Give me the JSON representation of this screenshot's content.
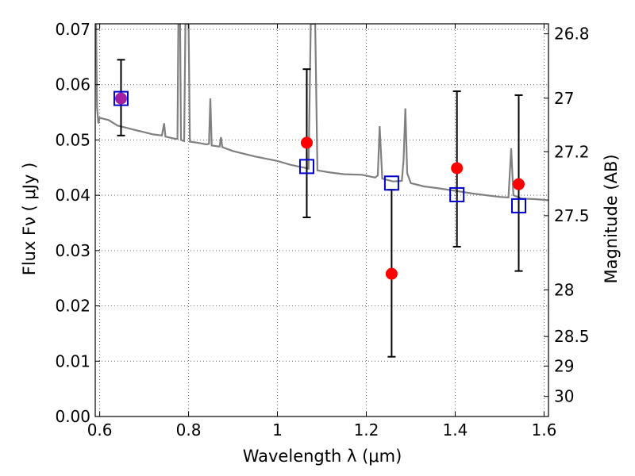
{
  "chart_data": {
    "type": "scatter",
    "xlabel": "Wavelength  λ (μm)",
    "ylabel": "Flux  Fν  ( μJy )",
    "ylabel_right": "Magnitude (AB)",
    "xlim": [
      0.59,
      1.61
    ],
    "ylim": [
      0.0,
      0.071
    ],
    "grid": true,
    "x_ticks": [
      {
        "value": 0.6,
        "label": "0.6"
      },
      {
        "value": 0.8,
        "label": "0.8"
      },
      {
        "value": 1.0,
        "label": "1"
      },
      {
        "value": 1.2,
        "label": "1.2"
      },
      {
        "value": 1.4,
        "label": "1.4"
      },
      {
        "value": 1.6,
        "label": "1.6"
      }
    ],
    "y_ticks": [
      {
        "value": 0.0,
        "label": "0.00"
      },
      {
        "value": 0.01,
        "label": "0.01"
      },
      {
        "value": 0.02,
        "label": "0.02"
      },
      {
        "value": 0.03,
        "label": "0.03"
      },
      {
        "value": 0.04,
        "label": "0.04"
      },
      {
        "value": 0.05,
        "label": "0.05"
      },
      {
        "value": 0.06,
        "label": "0.06"
      },
      {
        "value": 0.07,
        "label": "0.07"
      }
    ],
    "right_ticks": [
      {
        "mag": 26.8,
        "label": "26.8"
      },
      {
        "mag": 27.0,
        "label": "27"
      },
      {
        "mag": 27.2,
        "label": "27.2"
      },
      {
        "mag": 27.5,
        "label": "27.5"
      },
      {
        "mag": 28.0,
        "label": "28"
      },
      {
        "mag": 28.5,
        "label": "28.5"
      },
      {
        "mag": 29.0,
        "label": "29"
      },
      {
        "mag": 30.0,
        "label": "30"
      }
    ],
    "colors": {
      "observed": "#ff0000",
      "model": "#0000cc",
      "spectrum": "#808080",
      "errorbar": "#000000",
      "grid": "#666666",
      "overlap": "#a020a0"
    },
    "observed_points": [
      {
        "x": 0.648,
        "y": 0.0575,
        "yerr_low": 0.0508,
        "yerr_high": 0.0645
      },
      {
        "x": 1.066,
        "y": 0.0495,
        "yerr_low": 0.036,
        "yerr_high": 0.0628
      },
      {
        "x": 1.257,
        "y": 0.0258,
        "yerr_low": 0.0108,
        "yerr_high": 0.041
      },
      {
        "x": 1.404,
        "y": 0.0449,
        "yerr_low": 0.0307,
        "yerr_high": 0.0588
      },
      {
        "x": 1.543,
        "y": 0.042,
        "yerr_low": 0.0263,
        "yerr_high": 0.0581
      }
    ],
    "model_points": [
      {
        "x": 0.648,
        "y": 0.0575
      },
      {
        "x": 1.066,
        "y": 0.0452
      },
      {
        "x": 1.257,
        "y": 0.0422
      },
      {
        "x": 1.404,
        "y": 0.0401
      },
      {
        "x": 1.543,
        "y": 0.0381
      }
    ],
    "spectrum": [
      [
        0.59,
        0.066
      ],
      [
        0.592,
        0.071
      ],
      [
        0.594,
        0.056
      ],
      [
        0.597,
        0.053
      ],
      [
        0.6,
        0.054
      ],
      [
        0.62,
        0.0536
      ],
      [
        0.64,
        0.0526
      ],
      [
        0.66,
        0.0522
      ],
      [
        0.68,
        0.0518
      ],
      [
        0.7,
        0.0514
      ],
      [
        0.72,
        0.051
      ],
      [
        0.74,
        0.0508
      ],
      [
        0.745,
        0.053
      ],
      [
        0.748,
        0.0506
      ],
      [
        0.77,
        0.0502
      ],
      [
        0.775,
        0.0502
      ],
      [
        0.777,
        0.071
      ],
      [
        0.781,
        0.071
      ],
      [
        0.783,
        0.05
      ],
      [
        0.79,
        0.0498
      ],
      [
        0.793,
        0.071
      ],
      [
        0.8,
        0.071
      ],
      [
        0.803,
        0.0497
      ],
      [
        0.82,
        0.0495
      ],
      [
        0.84,
        0.0492
      ],
      [
        0.846,
        0.0493
      ],
      [
        0.849,
        0.0575
      ],
      [
        0.852,
        0.049
      ],
      [
        0.87,
        0.0488
      ],
      [
        0.873,
        0.0505
      ],
      [
        0.876,
        0.0487
      ],
      [
        0.9,
        0.048
      ],
      [
        0.95,
        0.047
      ],
      [
        1.0,
        0.0462
      ],
      [
        1.03,
        0.0455
      ],
      [
        1.06,
        0.045
      ],
      [
        1.07,
        0.0448
      ],
      [
        1.075,
        0.071
      ],
      [
        1.085,
        0.071
      ],
      [
        1.09,
        0.0445
      ],
      [
        1.12,
        0.0441
      ],
      [
        1.15,
        0.0438
      ],
      [
        1.19,
        0.0437
      ],
      [
        1.22,
        0.0432
      ],
      [
        1.226,
        0.0436
      ],
      [
        1.23,
        0.0525
      ],
      [
        1.236,
        0.043
      ],
      [
        1.26,
        0.0425
      ],
      [
        1.28,
        0.0426
      ],
      [
        1.284,
        0.0465
      ],
      [
        1.288,
        0.0557
      ],
      [
        1.292,
        0.044
      ],
      [
        1.3,
        0.0422
      ],
      [
        1.33,
        0.0416
      ],
      [
        1.36,
        0.0413
      ],
      [
        1.4,
        0.0408
      ],
      [
        1.44,
        0.0403
      ],
      [
        1.47,
        0.04
      ],
      [
        1.5,
        0.0397
      ],
      [
        1.52,
        0.0396
      ],
      [
        1.526,
        0.0485
      ],
      [
        1.531,
        0.04
      ],
      [
        1.55,
        0.0394
      ],
      [
        1.58,
        0.0393
      ],
      [
        1.61,
        0.0391
      ]
    ]
  }
}
